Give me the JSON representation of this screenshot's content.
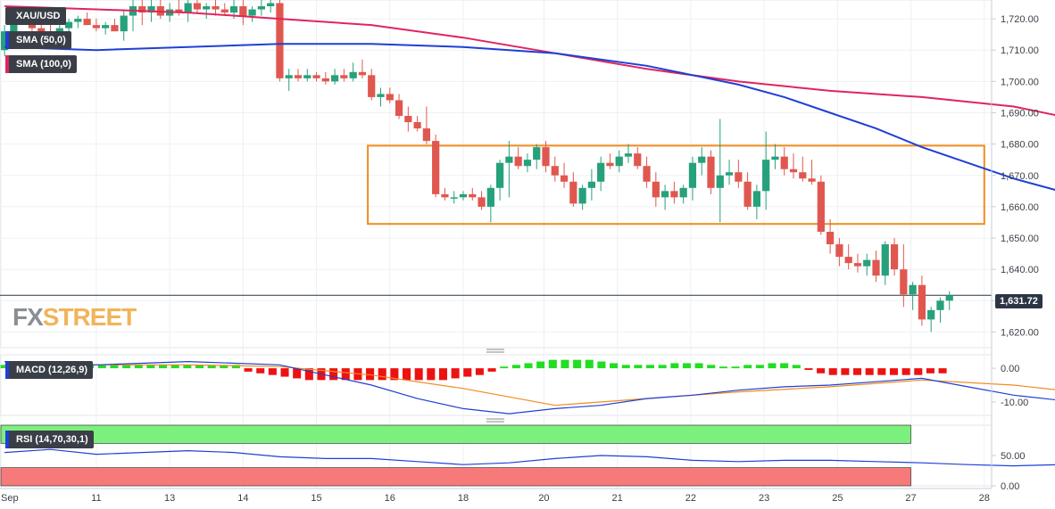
{
  "symbol": "XAU/USD",
  "watermark": {
    "fx": "FX",
    "street": "STREET"
  },
  "indicators": {
    "sma50": {
      "label": "SMA (50,0)",
      "color": "#1f3fd6"
    },
    "sma100": {
      "label": "SMA (100,0)",
      "color": "#e0245e"
    },
    "macd": {
      "label": "MACD (12,26,9)"
    },
    "rsi": {
      "label": "RSI (14,70,30,1)"
    }
  },
  "last_price": {
    "label": "1,631.72",
    "value": 1631.72
  },
  "colors": {
    "up": "#26a17b",
    "down": "#e0574f",
    "box": "#f08c1e",
    "sma50": "#1f3fd6",
    "sma100": "#e0245e",
    "macd_line": "#1f3fd6",
    "signal_line": "#f08c1e",
    "hist_up": "#22dd22",
    "hist_down": "#ee1111",
    "rsi_line": "#1f3fd6",
    "overbought": "#7cf07c",
    "oversold": "#f77a7a"
  },
  "chart_data": {
    "type": "candlestick",
    "price_axis": {
      "ylim": [
        1615,
        1726
      ],
      "ticks": [
        1620,
        1630,
        1640,
        1650,
        1660,
        1670,
        1680,
        1690,
        1700,
        1710,
        1720
      ],
      "tick_labels": [
        "1,620.00",
        "1,630.00",
        "1,640.00",
        "1,650.00",
        "1,660.00",
        "1,670.00",
        "1,680.00",
        "1,690.00",
        "1,700.00",
        "1,710.00",
        "1,720.00"
      ]
    },
    "x_axis": {
      "n_bars": 130,
      "tick_labels": [
        "Sep",
        "11",
        "13",
        "14",
        "15",
        "16",
        "18",
        "20",
        "21",
        "22",
        "23",
        "25",
        "27",
        "28"
      ],
      "tick_positions": [
        0,
        13,
        23,
        33,
        43,
        53,
        63,
        74,
        84,
        94,
        104,
        114,
        124,
        134
      ]
    },
    "consolidation_box": {
      "price_high": 1679.5,
      "price_low": 1654.5,
      "bar_start": 50,
      "bar_end": 134
    },
    "candles": [
      [
        1710,
        1718,
        1708,
        1716
      ],
      [
        1716,
        1722,
        1714,
        1720
      ],
      [
        1720,
        1724,
        1718,
        1719
      ],
      [
        1719,
        1723,
        1716,
        1717
      ],
      [
        1717,
        1720,
        1714,
        1716
      ],
      [
        1716,
        1719,
        1712,
        1714
      ],
      [
        1714,
        1718,
        1713,
        1717
      ],
      [
        1717,
        1720,
        1715,
        1719
      ],
      [
        1719,
        1721,
        1717,
        1720
      ],
      [
        1720,
        1722,
        1718,
        1718
      ],
      [
        1718,
        1720,
        1716,
        1717
      ],
      [
        1717,
        1719,
        1715,
        1718
      ],
      [
        1718,
        1720,
        1716,
        1716
      ],
      [
        1716,
        1723,
        1713,
        1721
      ],
      [
        1721,
        1726,
        1716,
        1724
      ],
      [
        1724,
        1726,
        1718,
        1722
      ],
      [
        1722,
        1726,
        1719,
        1724
      ],
      [
        1724,
        1726,
        1720,
        1721
      ],
      [
        1721,
        1725,
        1719,
        1723
      ],
      [
        1723,
        1726,
        1721,
        1722
      ],
      [
        1722,
        1726,
        1719,
        1725
      ],
      [
        1725,
        1726,
        1722,
        1723
      ],
      [
        1723,
        1725,
        1720,
        1724
      ],
      [
        1724,
        1726,
        1721,
        1723
      ],
      [
        1723,
        1725,
        1721,
        1722
      ],
      [
        1722,
        1726,
        1720,
        1724
      ],
      [
        1724,
        1726,
        1718,
        1721
      ],
      [
        1721,
        1724,
        1719,
        1723
      ],
      [
        1723,
        1726,
        1721,
        1724
      ],
      [
        1724,
        1726,
        1722,
        1725
      ],
      [
        1725,
        1726,
        1700,
        1701
      ],
      [
        1701,
        1704,
        1697,
        1702
      ],
      [
        1702,
        1704,
        1700,
        1701
      ],
      [
        1701,
        1704,
        1700,
        1702
      ],
      [
        1702,
        1703,
        1700,
        1701
      ],
      [
        1701,
        1703,
        1699,
        1700
      ],
      [
        1700,
        1704,
        1699,
        1702
      ],
      [
        1702,
        1704,
        1700,
        1701
      ],
      [
        1701,
        1706,
        1700,
        1703
      ],
      [
        1703,
        1707,
        1701,
        1702
      ],
      [
        1702,
        1704,
        1694,
        1695
      ],
      [
        1695,
        1698,
        1692,
        1696
      ],
      [
        1696,
        1698,
        1693,
        1694
      ],
      [
        1694,
        1696,
        1688,
        1689
      ],
      [
        1689,
        1692,
        1684,
        1687
      ],
      [
        1687,
        1689,
        1684,
        1685
      ],
      [
        1685,
        1692,
        1680,
        1681
      ],
      [
        1681,
        1683,
        1663,
        1664
      ],
      [
        1664,
        1666,
        1662,
        1663
      ],
      [
        1663,
        1665,
        1661,
        1663
      ],
      [
        1663,
        1665,
        1662,
        1664
      ],
      [
        1664,
        1666,
        1662,
        1663
      ],
      [
        1663,
        1665,
        1659,
        1660
      ],
      [
        1660,
        1667,
        1655,
        1666
      ],
      [
        1666,
        1675,
        1662,
        1674
      ],
      [
        1674,
        1681,
        1663,
        1676
      ],
      [
        1676,
        1679,
        1672,
        1673
      ],
      [
        1673,
        1677,
        1671,
        1675
      ],
      [
        1675,
        1680,
        1672,
        1679
      ],
      [
        1679,
        1681,
        1671,
        1673
      ],
      [
        1673,
        1676,
        1668,
        1670
      ],
      [
        1670,
        1674,
        1666,
        1668
      ],
      [
        1668,
        1671,
        1660,
        1661
      ],
      [
        1661,
        1667,
        1659,
        1666
      ],
      [
        1666,
        1672,
        1662,
        1668
      ],
      [
        1668,
        1676,
        1665,
        1674
      ],
      [
        1674,
        1677,
        1672,
        1673
      ],
      [
        1673,
        1678,
        1671,
        1676
      ],
      [
        1676,
        1680,
        1674,
        1677
      ],
      [
        1677,
        1679,
        1672,
        1673
      ],
      [
        1673,
        1676,
        1666,
        1668
      ],
      [
        1668,
        1671,
        1660,
        1663
      ],
      [
        1663,
        1667,
        1659,
        1665
      ],
      [
        1665,
        1668,
        1661,
        1663
      ],
      [
        1663,
        1667,
        1661,
        1666
      ],
      [
        1666,
        1676,
        1662,
        1674
      ],
      [
        1674,
        1679,
        1670,
        1676
      ],
      [
        1676,
        1678,
        1664,
        1666
      ],
      [
        1666,
        1688,
        1655,
        1670
      ],
      [
        1670,
        1675,
        1667,
        1671
      ],
      [
        1671,
        1675,
        1666,
        1668
      ],
      [
        1668,
        1671,
        1659,
        1660
      ],
      [
        1660,
        1667,
        1656,
        1665
      ],
      [
        1665,
        1684,
        1659,
        1675
      ],
      [
        1675,
        1680,
        1672,
        1676
      ],
      [
        1676,
        1679,
        1670,
        1672
      ],
      [
        1672,
        1677,
        1669,
        1671
      ],
      [
        1671,
        1676,
        1668,
        1669
      ],
      [
        1669,
        1675,
        1667,
        1668
      ],
      [
        1668,
        1670,
        1651,
        1652
      ],
      [
        1652,
        1656,
        1645,
        1648
      ],
      [
        1648,
        1650,
        1641,
        1644
      ],
      [
        1644,
        1648,
        1640,
        1642
      ],
      [
        1642,
        1645,
        1639,
        1641
      ],
      [
        1641,
        1645,
        1638,
        1643
      ],
      [
        1643,
        1646,
        1636,
        1638
      ],
      [
        1638,
        1649,
        1635,
        1648
      ],
      [
        1648,
        1650,
        1638,
        1640
      ],
      [
        1640,
        1648,
        1628,
        1632
      ],
      [
        1632,
        1636,
        1627,
        1635
      ],
      [
        1635,
        1638,
        1622,
        1624
      ],
      [
        1624,
        1628,
        1620,
        1627
      ],
      [
        1627,
        1631,
        1623,
        1630
      ],
      [
        1630,
        1633,
        1627,
        1631.72
      ]
    ],
    "candle_bar_positions": [
      0,
      1,
      2,
      3,
      4,
      5,
      6,
      7,
      8,
      9,
      10,
      11,
      12,
      13,
      14,
      15,
      16,
      17,
      18,
      19,
      20,
      21,
      22,
      23,
      24,
      25,
      26,
      27,
      28,
      29,
      30,
      31,
      32,
      33,
      34,
      35,
      36,
      37,
      38,
      39,
      40,
      41,
      42,
      43,
      44,
      45,
      46,
      47,
      48,
      49,
      50,
      51,
      52,
      53,
      54,
      55,
      56,
      57,
      58,
      59,
      60,
      61,
      62,
      63,
      64,
      65,
      66,
      67,
      68,
      69,
      70,
      71,
      72,
      73,
      74,
      75,
      76,
      77,
      78,
      79,
      80,
      81,
      82,
      83,
      84,
      85,
      86,
      87,
      88,
      89,
      90,
      91,
      92,
      93,
      94,
      95,
      96,
      97,
      98,
      99,
      100,
      101,
      102,
      103
    ],
    "sma50": {
      "x": [
        0,
        10,
        20,
        30,
        40,
        50,
        60,
        70,
        75,
        80,
        85,
        90,
        95,
        100,
        105,
        110,
        115,
        120
      ],
      "y": [
        1711,
        1710,
        1711,
        1712,
        1712,
        1711,
        1709,
        1705,
        1702,
        1699,
        1695,
        1690,
        1685,
        1679,
        1674,
        1669,
        1665,
        1661
      ]
    },
    "sma100": {
      "x": [
        0,
        10,
        20,
        30,
        40,
        50,
        60,
        70,
        80,
        90,
        100,
        110,
        120
      ],
      "y": [
        1724,
        1723,
        1722,
        1720,
        1718,
        1714,
        1709,
        1704,
        1700,
        1697,
        1695,
        1692,
        1686
      ]
    },
    "macd": {
      "ylim": [
        -14,
        4
      ],
      "ticks": [
        0,
        -10
      ],
      "tick_labels": [
        "0.00",
        "-10.00"
      ],
      "macd_line_x": [
        0,
        10,
        20,
        30,
        35,
        40,
        45,
        50,
        55,
        60,
        65,
        70,
        75,
        80,
        85,
        90,
        95,
        100,
        105,
        110,
        115,
        120,
        123
      ],
      "macd_line_y": [
        2,
        1,
        2,
        1,
        -2,
        -5,
        -9,
        -12,
        -13.5,
        -12,
        -11,
        -9,
        -8,
        -6.5,
        -5.5,
        -5,
        -4,
        -3,
        -5.5,
        -8,
        -9.5,
        -10.5,
        -10.5
      ],
      "signal_line_x": [
        0,
        10,
        20,
        30,
        40,
        50,
        60,
        70,
        80,
        90,
        100,
        110,
        120,
        123
      ],
      "signal_line_y": [
        1,
        1,
        1,
        0.5,
        -2,
        -6,
        -11,
        -9,
        -7,
        -5.5,
        -3.5,
        -5,
        -8,
        -9.5
      ],
      "histogram": [
        1,
        1,
        1,
        1,
        1,
        1,
        1,
        1,
        1,
        1,
        1,
        1,
        1,
        1,
        1,
        1,
        1,
        1,
        1,
        1,
        -1,
        -1.5,
        -2,
        -2.5,
        -3,
        -3.5,
        -3.5,
        -3.5,
        -3.5,
        -3.5,
        -3.5,
        -3.5,
        -3.5,
        -3.5,
        -3.5,
        -3.5,
        -3.5,
        -3,
        -2.5,
        -2,
        -1,
        0.5,
        1,
        1.5,
        2,
        2.5,
        2.5,
        2.5,
        2.5,
        2,
        1.5,
        1,
        1,
        1,
        1,
        1.5,
        1.5,
        1.5,
        1,
        0.5,
        0.5,
        1,
        1,
        1.5,
        1.5,
        1,
        -0.5,
        -1.5,
        -2,
        -2,
        -2,
        -2,
        -2,
        -2,
        -2,
        -2,
        -1.5,
        -1.5
      ]
    },
    "rsi": {
      "ylim": [
        0,
        100
      ],
      "ticks": [
        50,
        0
      ],
      "tick_labels": [
        "50.00",
        "0.00"
      ],
      "overbought": 70,
      "oversold": 30,
      "x": [
        0,
        5,
        10,
        15,
        20,
        25,
        30,
        35,
        40,
        45,
        50,
        55,
        60,
        65,
        70,
        75,
        80,
        85,
        90,
        95,
        100,
        105,
        110,
        115,
        120,
        123
      ],
      "y": [
        55,
        60,
        52,
        55,
        58,
        55,
        48,
        45,
        45,
        40,
        35,
        38,
        45,
        50,
        48,
        42,
        40,
        42,
        42,
        40,
        38,
        35,
        33,
        35,
        30,
        33
      ]
    }
  }
}
